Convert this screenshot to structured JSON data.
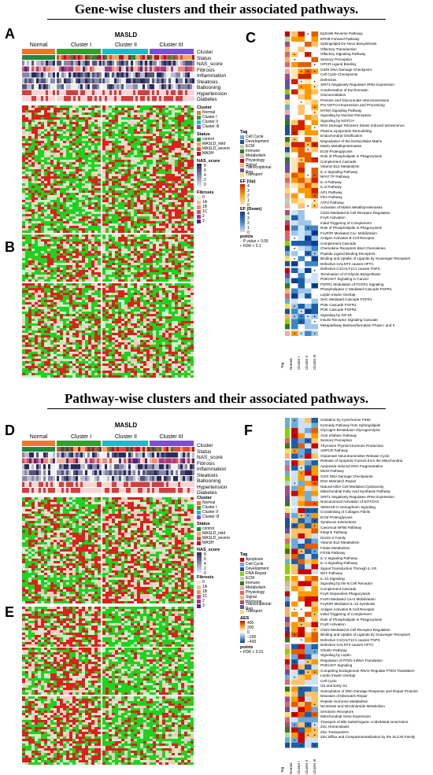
{
  "section1_title": "Gene-wise clusters and their associated pathways.",
  "section2_title": "Pathway-wise clusters and their associated pathways.",
  "panels": {
    "a": "A",
    "b": "B",
    "c": "C",
    "d": "D",
    "e": "E",
    "f": "F"
  },
  "group_header": "MASLD",
  "columns": [
    "Normal",
    "Cluster I",
    "Cluster II",
    "Cluster III"
  ],
  "annotation_rows_top": [
    "Cluster",
    "Status",
    "NAS_score",
    "Fibrosis",
    "Inflammation",
    "Steatosis",
    "Ballooning",
    "Hypertension",
    "Diabetes"
  ],
  "annotation_rows_bottom": [
    "Cluster",
    "Status",
    "NAS_score",
    "Fibrosis",
    "Inflammation",
    "Steatosis",
    "Ballooning",
    "Hypertension",
    "Diabetes"
  ],
  "legend_top": {
    "cluster_title": "Cluster",
    "cluster_items": [
      "Normal",
      "Cluster I",
      "Cluster II",
      "Cluster III"
    ],
    "status_title": "Status",
    "status_items": [
      "control",
      "MASLD_mild",
      "MASLD_severe",
      "MASH"
    ],
    "nas_title": "NAS_score",
    "nas_ticks": [
      "8",
      "6",
      "4",
      "2",
      "0"
    ],
    "fib_title": "Fibrosis",
    "fib_items": [
      "0",
      "1A",
      "1B",
      "1C",
      "2",
      "3"
    ]
  },
  "legend_c": {
    "tag_title": "Tag",
    "tag_items": [
      "Cell Cycle",
      "Development",
      "ECM",
      "Immune",
      "Metabolism",
      "Physiology",
      "Signal",
      "Transcriptional Reg.",
      "Transport"
    ],
    "ef_up_title": "EF (Up)",
    "ef_up_ticks": [
      "4",
      "3",
      "2",
      "1",
      "0"
    ],
    "ef_down_title": "EF (Down)",
    "ef_down_ticks": [
      "4",
      "3",
      "2",
      "1",
      "0"
    ],
    "points_title": "points",
    "points_items": [
      "P value < 0.05",
      "FDR < 0.1"
    ]
  },
  "legend_d": {
    "cluster_title": "Cluster",
    "cluster_items": [
      "Normal",
      "Cluster I",
      "Cluster II",
      "Cluster III"
    ],
    "status_title": "Status",
    "status_items": [
      "control",
      "MASLD_mild",
      "MASLD_severe",
      "MASH"
    ],
    "nas_title": "NAS_score",
    "nas_ticks": [
      "8",
      "6",
      "4",
      "2",
      "0"
    ],
    "tag_title": "Tag",
    "tag_items": [
      "Apoptosis",
      "Cell Cycle",
      "Development",
      "DNA Repair",
      "ECM",
      "Immune",
      "Metabolism",
      "Physiology",
      "Signal",
      "Hormone",
      "Transcriptional Reg.",
      "Transport"
    ],
    "fib_title": "Fibrosis",
    "fib_items": [
      "0",
      "1A",
      "1B",
      "1C",
      "2",
      "3"
    ],
    "aes_title": "ΔES",
    "aes_ticks": [
      "400",
      "200",
      "0",
      "−200",
      "−400"
    ],
    "points_title": "points",
    "points_items": [
      "FDR < 0.01"
    ]
  },
  "pathways_c": [
    "EphrinB Reverse Pathway",
    "EPHB Forward Pathway",
    "Sphingolipid De Novo Biosynthesis",
    "Olfactory Transduction",
    "Olfactory Signaling Pathway",
    "Sensory Perception",
    "GPCR Ligand Binding",
    "G2/M DNA Damage Checkpoint",
    "Cell Cycle Checkpoints",
    "Defensins",
    "SIRT1 Negatively Regulates rRNA Expression",
    "Condensation of Euchromatin",
    "Glucuronidation",
    "Pentose and Glucuronate Interconversions",
    "Pre NOTCH Expression and Processing",
    "MYMA Signaling Pathway",
    "Signaling by Nuclear Receptors",
    "Signaling by NOTCH",
    "DNA Damage Telomere Stress Induced Senescence",
    "Plasma Lipoprotein Remodeling",
    "Endochondral Ossification",
    "Degradation of the Extracellular Matrix",
    "Matrix Metalloproteinases",
    "ECM Proteoglycans",
    "Role of Phospholipids in Phagocytosis",
    "Complement Cascade",
    "Vitamin B12 Metabolism",
    "IL-2 Signaling Pathway",
    "NFAT TF Pathway",
    "IL-4 Pathway",
    "IL-6 Pathway",
    "AP1 Pathway",
    "FRA Pathway",
    "ATF2 Pathway",
    "Activation of Matrix Metalloproteinases",
    "CD22 Mediated B Cell Receptor Regulation",
    "FcγR Activation",
    "Initial Triggering of Complement",
    "Role of Phospholipids in Phagocytosis",
    "FcγR/PI Mediated Ca+ Mobilization",
    "Antigen Activates B Cell Receptor",
    "Complement Cascade",
    "Chemokine Receptors Bind Chemokines",
    "Peptide Ligand Binding Receptors",
    "Binding and Uptake of Ligands by Scavenger Receptors",
    "Defective GALNT3 causes HFTC",
    "Defective C1GALT1C1 causes TNPS",
    "Termination of O-Glycan Biosynthesis",
    "PI3K/AKT Signaling in Cancer",
    "FGFR1 Modulation of FGFR1 Signaling",
    "Phospholipase C Mediated Cascade FGFR1",
    "Leptin Insulin Overlap",
    "SHC Mediated Cascade FGFR1",
    "PI3K Cascade FGFR1",
    "PI3K Cascade FGFR2",
    "Signaling by IGF1R",
    "Insulin Receptor Signaling Cascade",
    "Metapathway Biotransformation Phase I and II"
  ],
  "pathways_f": [
    "Oxidation by Cytochrome P450",
    "Kennedy Pathway from Sphingolipids",
    "Glycogen Breakdown Glycogenolysis",
    "ACE Inhibitor Pathway",
    "Sensory Perception",
    "Thyroxine Thyroid Hormone Production",
    "ADPCR Pathway",
    "Glutamate Neurotransmitter Release Cycle",
    "Release of Apoptotic Factors from the Mitochondria",
    "Apoptosis Induced DNA Fragmentation",
    "MCM Pathway",
    "G2/S DNA Damage Checkpoints",
    "DNA Mismatch Repair",
    "Natural Killer Cell Mediated Cytotoxicity",
    "Mitochondrial Fatty Acid Synthesis Pathway",
    "SIRT1 Negatively Regulates rRNA Expression",
    "Noncanonical Activation of NOTCH3",
    "SEMA4D in Semaphorin Signaling",
    "Crosslinking of Collagen Fibrils",
    "ECM Proteoglycans",
    "Syndecan Interactions",
    "Canonical NFkB Pathway",
    "Integrin Pathway",
    "Dectin-2 Family",
    "Vitamin B12 Metabolism",
    "Folate Metabolism",
    "FOXB Pathway",
    "IL-2 Signaling Pathway",
    "IL-4 Signaling Pathway",
    "Signal Transduction Through IL-1R",
    "NKT Pathway",
    "IL-10 Signaling",
    "Signaling by the B Cell Receptor",
    "Complement Cascade",
    "FcγR Dependent Phagocytosis",
    "FcεRI Mediated Ca+2 Mobilization",
    "FcγR/PI Mediated IL-10 Synthesis",
    "Antigen Activates B Cell Receptor",
    "Initial Triggering of Complement",
    "Role of Phospholipids in Phagocytosis",
    "FcγR Activation",
    "CD22 Mediated B Cell Receptor Regulation",
    "Binding and Uptake of Ligands by Scavenger Receptors",
    "Defective C1GALT1C1 causes TNPS",
    "Defective GALNT3 causes HFTC",
    "Ghrelin Pathway",
    "Signaling by Leptin",
    "Regulation of PTEN mRNA Translation",
    "PI3K/AKT Signaling",
    "Competing Endogenous RNAs Regulate PTEN Translation",
    "Leptin Insulin Overlap",
    "Cell Cycle",
    "G0 and Early G1",
    "Sumoylation of DNA Damage Response and Repair Proteins",
    "Diseases of Mismatch Repair",
    "Peptide Hormone Metabolism",
    "Nicotinate and Nicotinamide Metabolism",
    "Serotonin Receptors",
    "Mitochondrial Gene Expression",
    "Transport of Bile Salts/Organic Acids/Metal Ions/Amine",
    "Zinc Homeostasis",
    "Zinc Transporters",
    "Zinc Efflux and Compartmentalization by the SLC30 Family"
  ],
  "axis_labels": {
    "tag": "Tag",
    "cols": [
      "Normal",
      "Cluster I",
      "Cluster II",
      "Cluster III"
    ]
  },
  "colors": {
    "normal": "#e87a2c",
    "cluster1": "#33a02c",
    "cluster2": "#1fb8c8",
    "cluster3": "#7b4fd1",
    "heat_red": "#d9221c",
    "heat_green": "#1fd21f",
    "heat_white": "#f2f2f2"
  }
}
